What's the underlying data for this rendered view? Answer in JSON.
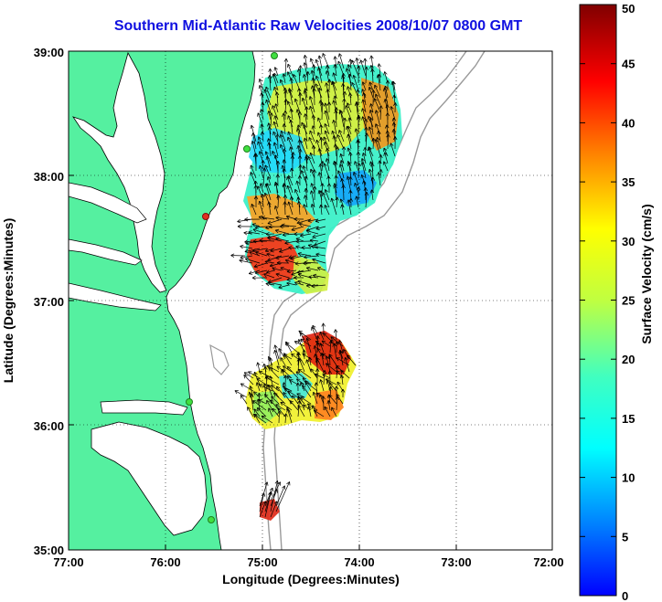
{
  "title": "Southern Mid-Atlantic Raw Velocities 2008/10/07 0800 GMT",
  "xlabel": "Longitude (Degrees:Minutes)",
  "ylabel": "Latitude (Degrees:Minutes)",
  "colorbar": {
    "label": "Surface Velocity (cm/s)",
    "min": 0,
    "max": 50,
    "ticks": [
      "0",
      "5",
      "10",
      "15",
      "20",
      "25",
      "30",
      "35",
      "40",
      "45",
      "50"
    ]
  },
  "axes": {
    "lon_range": [
      -77,
      -72
    ],
    "lat_range": [
      35,
      39
    ],
    "x_ticks": [
      "77:00",
      "76:00",
      "75:00",
      "74:00",
      "73:00",
      "72:00"
    ],
    "y_ticks": [
      "39:00",
      "38:00",
      "37:00",
      "36:00",
      "35:00"
    ]
  },
  "colors": {
    "land": "#55f0a0",
    "title": "#1010e0",
    "bathymetry": "#9a9a9a",
    "grid": "#000000"
  }
}
